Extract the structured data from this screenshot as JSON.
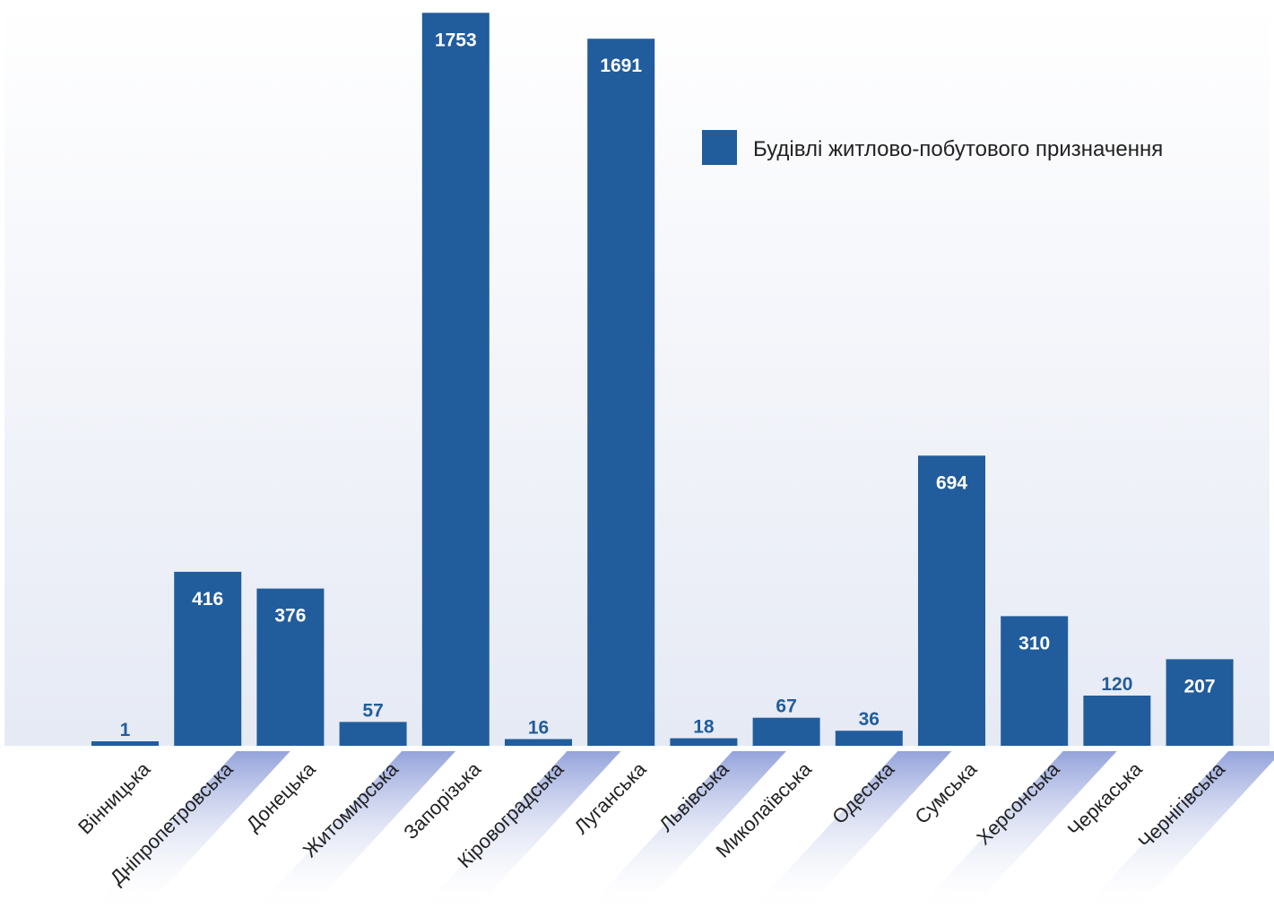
{
  "chart_data": {
    "type": "bar",
    "categories": [
      "Вінницька",
      "Дніпропетровська",
      "Донецька",
      "Житомирська",
      "Запорізька",
      "Кіровоградська",
      "Луганська",
      "Львівська",
      "Миколаївська",
      "Одеська",
      "Сумська",
      "Херсонська",
      "Черкаська",
      "Чернігівська"
    ],
    "series": [
      {
        "name": "Будівлі житлово-побутового призначення",
        "values": [
          1,
          416,
          376,
          57,
          1753,
          16,
          1691,
          18,
          67,
          36,
          694,
          310,
          120,
          207
        ]
      }
    ],
    "ylim": [
      0,
      1760
    ],
    "grid": false,
    "legend_position": "top-right",
    "colors": {
      "bar": "#215d9c",
      "label_inside": "#ffffff",
      "label_outside": "#215d9c",
      "axis_text": "#222222",
      "plot_bg_top": "#ffffff",
      "plot_bg_bottom": "#e6eaf5",
      "band": "#9aa9de"
    }
  }
}
